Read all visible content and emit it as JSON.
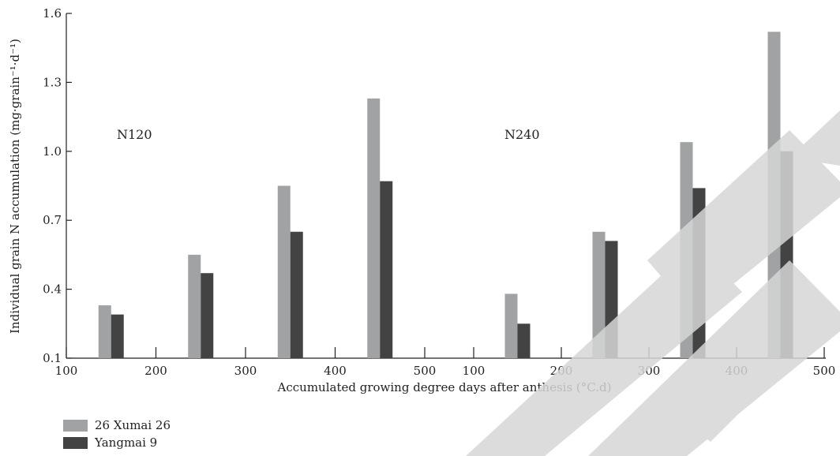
{
  "chart_data": {
    "type": "bar",
    "ylabel": "Individual grain N accumulation (mg·grain⁻¹·d⁻¹)",
    "xlabel": "Accumulated growing degree days after anthesis (°C.d)",
    "ylim": [
      0.1,
      1.6
    ],
    "yticks": [
      "0.1",
      "0.4",
      "0.7",
      "1.0",
      "1.3",
      "1.6"
    ],
    "grid": false,
    "legend_position": "bottom-left",
    "colors": {
      "series1": "#a0a2a3",
      "series2": "#434344"
    },
    "panels": [
      {
        "annotation": "N120",
        "xlim": [
          100,
          500
        ],
        "xticks": [
          "100",
          "200",
          "300",
          "400",
          "500"
        ],
        "x": [
          150,
          250,
          350,
          450
        ],
        "series": [
          {
            "name": "26 Xumai 26",
            "values": [
              0.33,
              0.55,
              0.85,
              1.23
            ]
          },
          {
            "name": "Yangmai 9",
            "values": [
              0.29,
              0.47,
              0.65,
              0.87
            ]
          }
        ]
      },
      {
        "annotation": "N240",
        "xlim": [
          100,
          500
        ],
        "xticks": [
          "100",
          "200",
          "300",
          "400",
          "500"
        ],
        "x": [
          150,
          250,
          350,
          450
        ],
        "series": [
          {
            "name": "26 Xumai 26",
            "values": [
              0.38,
              0.65,
              1.04,
              1.52
            ]
          },
          {
            "name": "Yangmai 9",
            "values": [
              0.25,
              0.61,
              0.84,
              1.0
            ]
          }
        ]
      }
    ]
  },
  "legend": [
    {
      "label": "26 Xumai 26",
      "color": "#a0a2a3"
    },
    {
      "label": "Yangmai 9",
      "color": "#434344"
    }
  ]
}
